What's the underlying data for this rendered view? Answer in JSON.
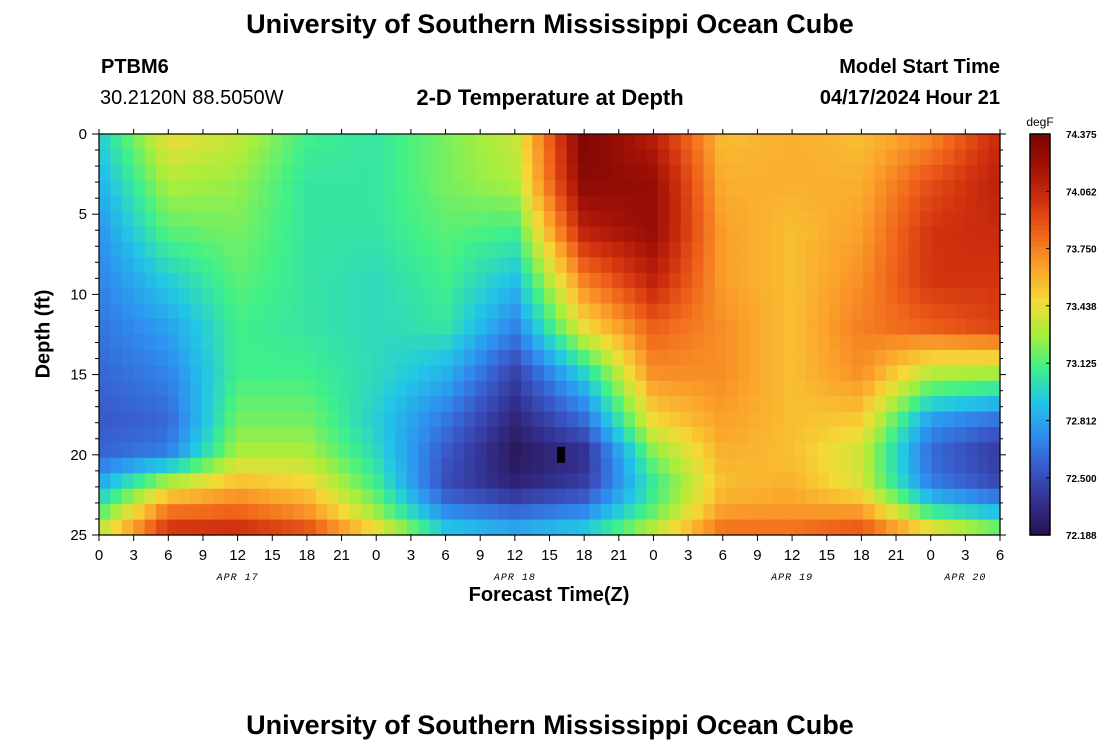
{
  "header": {
    "title": "University of Southern Mississippi Ocean Cube",
    "station_id": "PTBM6",
    "coordinates": "30.2120N  88.5050W",
    "plot_title": "2-D Temperature at Depth",
    "model_start_label": "Model Start Time",
    "model_start_value": "04/17/2024 Hour 21"
  },
  "footer": {
    "title": "University of Southern Mississippi Ocean Cube"
  },
  "colors": {
    "palette": [
      "#2a1250",
      "#33308f",
      "#3a58c8",
      "#2f8ef0",
      "#22c6e6",
      "#3ff08a",
      "#a8ee3c",
      "#f5da36",
      "#fba12b",
      "#f0641a",
      "#d0300e",
      "#a31207",
      "#7a0502"
    ]
  },
  "chart_data": {
    "type": "heatmap",
    "title": "2-D Temperature at Depth",
    "xlabel": "Forecast Time(Z)",
    "ylabel": "Depth (ft)",
    "colorbar_unit": "degF",
    "colorbar_ticks": [
      "74.375",
      "74.062",
      "73.750",
      "73.438",
      "73.125",
      "72.812",
      "72.500",
      "72.188"
    ],
    "color_range": [
      72.188,
      74.375
    ],
    "x_ticks": [
      "0",
      "3",
      "6",
      "9",
      "12",
      "15",
      "18",
      "21",
      "0",
      "3",
      "6",
      "9",
      "12",
      "15",
      "18",
      "21",
      "0",
      "3",
      "6",
      "9",
      "12",
      "15",
      "18",
      "21",
      "0",
      "3",
      "6"
    ],
    "x_range_hours": [
      0,
      78
    ],
    "date_labels": [
      {
        "label": "APR 17",
        "hour": 12
      },
      {
        "label": "APR 18",
        "hour": 36
      },
      {
        "label": "APR 19",
        "hour": 60
      },
      {
        "label": "APR 20",
        "hour": 75
      }
    ],
    "y_ticks": [
      "0",
      "5",
      "10",
      "15",
      "20",
      "25"
    ],
    "y_range": [
      0,
      25
    ],
    "y_inverted": true,
    "depths_ft": [
      0,
      3,
      6,
      9,
      12,
      15,
      18,
      20,
      22,
      24,
      25
    ],
    "times_hr": [
      0,
      6,
      12,
      18,
      24,
      30,
      36,
      42,
      48,
      54,
      60,
      66,
      72,
      78
    ],
    "temperature_degF": [
      [
        72.95,
        73.45,
        73.35,
        73.1,
        73.05,
        73.2,
        73.35,
        74.35,
        74.1,
        73.55,
        73.6,
        73.55,
        73.7,
        74.05
      ],
      [
        72.85,
        73.3,
        73.25,
        73.05,
        73.05,
        73.2,
        73.3,
        74.3,
        74.25,
        73.6,
        73.6,
        73.6,
        73.9,
        74.1
      ],
      [
        72.75,
        73.15,
        73.2,
        73.05,
        73.05,
        73.15,
        73.1,
        74.1,
        74.25,
        73.65,
        73.55,
        73.65,
        74.0,
        74.05
      ],
      [
        72.7,
        72.95,
        73.15,
        73.05,
        73.0,
        73.1,
        72.9,
        73.75,
        74.1,
        73.65,
        73.55,
        73.7,
        74.0,
        74.0
      ],
      [
        72.65,
        72.8,
        73.1,
        73.05,
        73.0,
        73.05,
        72.7,
        73.45,
        73.85,
        73.7,
        73.55,
        73.75,
        73.85,
        73.95
      ],
      [
        72.6,
        72.7,
        73.1,
        73.1,
        73.0,
        72.85,
        72.45,
        72.95,
        73.7,
        73.7,
        73.55,
        73.7,
        73.3,
        73.25
      ],
      [
        72.55,
        72.6,
        73.2,
        73.2,
        72.95,
        72.65,
        72.3,
        72.6,
        73.45,
        73.65,
        73.55,
        73.5,
        72.75,
        72.6
      ],
      [
        72.6,
        72.7,
        73.3,
        73.3,
        73.0,
        72.55,
        72.22,
        72.35,
        73.2,
        73.6,
        73.55,
        73.35,
        72.6,
        72.4
      ],
      [
        72.85,
        73.4,
        73.6,
        73.5,
        73.1,
        72.5,
        72.3,
        72.45,
        73.05,
        73.55,
        73.6,
        73.4,
        72.7,
        72.5
      ],
      [
        73.2,
        73.9,
        73.9,
        73.75,
        73.3,
        72.8,
        72.7,
        72.8,
        73.2,
        73.7,
        73.7,
        73.75,
        73.2,
        73.0
      ],
      [
        73.4,
        74.05,
        74.1,
        74.0,
        73.55,
        73.0,
        72.9,
        73.0,
        73.4,
        73.85,
        73.85,
        73.95,
        73.6,
        73.3
      ]
    ],
    "annotation": {
      "hour": 40,
      "depth_ft": 20,
      "kind": "marker"
    }
  }
}
